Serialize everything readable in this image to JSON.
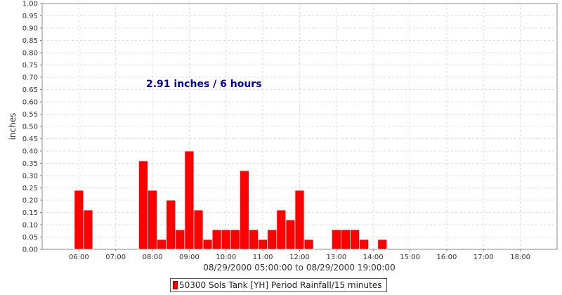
{
  "chart_data": {
    "type": "bar",
    "title": "",
    "xlabel": "08/29/2000 05:00:00 to 08/29/2000 19:00:00",
    "ylabel": "inches",
    "annotation": "2.91 inches / 6 hours",
    "ylim": [
      0,
      1.0
    ],
    "yticks": [
      "0.00",
      "0.05",
      "0.10",
      "0.15",
      "0.20",
      "0.25",
      "0.30",
      "0.35",
      "0.40",
      "0.45",
      "0.50",
      "0.55",
      "0.60",
      "0.65",
      "0.70",
      "0.75",
      "0.80",
      "0.85",
      "0.90",
      "0.95",
      "1.00"
    ],
    "xlim": [
      "05:00",
      "19:00"
    ],
    "xticks": [
      "06:00",
      "07:00",
      "08:00",
      "09:00",
      "10:00",
      "11:00",
      "12:00",
      "13:00",
      "14:00",
      "15:00",
      "16:00",
      "17:00",
      "18:00"
    ],
    "grid": true,
    "legend_position": "bottom",
    "bar_color": "#ff0000",
    "series": [
      {
        "name": "50300 Sols Tank [YH] Period Rainfall/15 minutes",
        "times": [
          "06:00",
          "06:15",
          "07:45",
          "08:00",
          "08:15",
          "08:30",
          "08:45",
          "09:00",
          "09:15",
          "09:30",
          "09:45",
          "10:00",
          "10:15",
          "10:30",
          "10:45",
          "11:00",
          "11:15",
          "11:30",
          "11:45",
          "12:00",
          "12:15",
          "13:00",
          "13:15",
          "13:30",
          "13:45",
          "14:15"
        ],
        "values": [
          0.24,
          0.16,
          0.36,
          0.24,
          0.04,
          0.2,
          0.08,
          0.4,
          0.16,
          0.04,
          0.08,
          0.08,
          0.08,
          0.32,
          0.08,
          0.04,
          0.08,
          0.16,
          0.12,
          0.24,
          0.04,
          0.08,
          0.08,
          0.08,
          0.04,
          0.04
        ]
      }
    ]
  }
}
